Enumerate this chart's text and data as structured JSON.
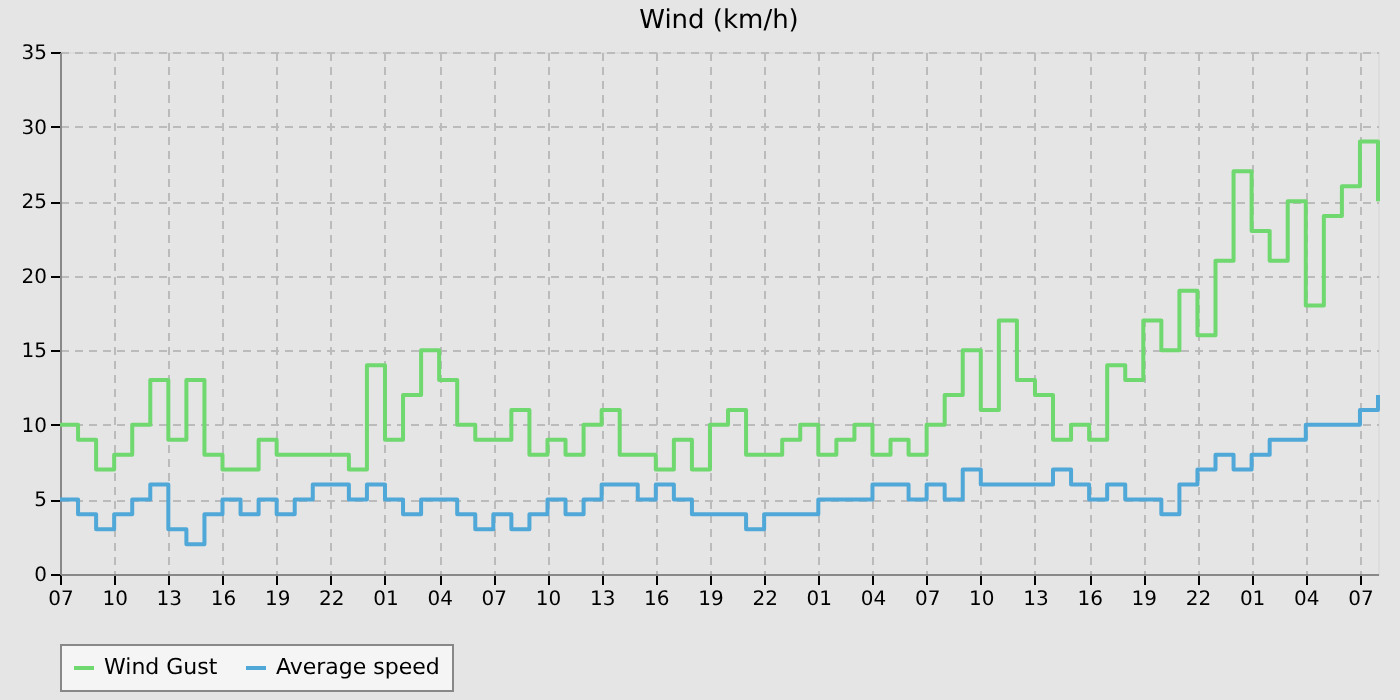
{
  "chart_data": {
    "type": "step",
    "title": "Wind (km/h)",
    "categories": [
      "07",
      null,
      null,
      "10",
      null,
      null,
      "13",
      null,
      null,
      "16",
      null,
      null,
      "19",
      null,
      null,
      "22",
      null,
      null,
      "01",
      null,
      null,
      "04",
      null,
      null,
      "07",
      null,
      null,
      "10",
      null,
      null,
      "13",
      null,
      null,
      "16",
      null,
      null,
      "19",
      null,
      null,
      "22",
      null,
      null,
      "01",
      null,
      null,
      "04",
      null,
      null,
      "07",
      null,
      null,
      "10",
      null,
      null,
      "13",
      null,
      null,
      "16",
      null,
      null,
      "19",
      null,
      null,
      "22",
      null,
      null,
      "01",
      null,
      null,
      "04",
      null,
      null,
      "07",
      null
    ],
    "series": [
      {
        "name": "Wind Gust",
        "color": "#6fd86f",
        "values": [
          10,
          9,
          7,
          8,
          10,
          13,
          9,
          13,
          8,
          7,
          7,
          9,
          8,
          8,
          8,
          8,
          7,
          14,
          9,
          12,
          15,
          13,
          10,
          9,
          9,
          11,
          8,
          9,
          8,
          10,
          11,
          8,
          8,
          7,
          9,
          7,
          10,
          11,
          8,
          8,
          9,
          10,
          8,
          9,
          10,
          8,
          9,
          8,
          10,
          12,
          15,
          11,
          17,
          13,
          12,
          9,
          10,
          9,
          14,
          13,
          17,
          15,
          19,
          16,
          21,
          27,
          23,
          21,
          25,
          18,
          24,
          26,
          29,
          25
        ]
      },
      {
        "name": "Average speed",
        "color": "#4fa8d8",
        "values": [
          5,
          4,
          3,
          4,
          5,
          6,
          3,
          2,
          4,
          5,
          4,
          5,
          4,
          5,
          6,
          6,
          5,
          6,
          5,
          4,
          5,
          5,
          4,
          3,
          4,
          3,
          4,
          5,
          4,
          5,
          6,
          6,
          5,
          6,
          5,
          4,
          4,
          4,
          3,
          4,
          4,
          4,
          5,
          5,
          5,
          6,
          6,
          5,
          6,
          5,
          7,
          6,
          6,
          6,
          6,
          7,
          6,
          5,
          6,
          5,
          5,
          4,
          6,
          7,
          8,
          7,
          8,
          9,
          9,
          10,
          10,
          10,
          11,
          12
        ]
      }
    ],
    "ylim": [
      0,
      35
    ],
    "yticks": [
      0,
      5,
      10,
      15,
      20,
      25,
      30,
      35
    ],
    "grid": true,
    "legend": "bottom",
    "line_style": "solid",
    "marker": "none"
  }
}
